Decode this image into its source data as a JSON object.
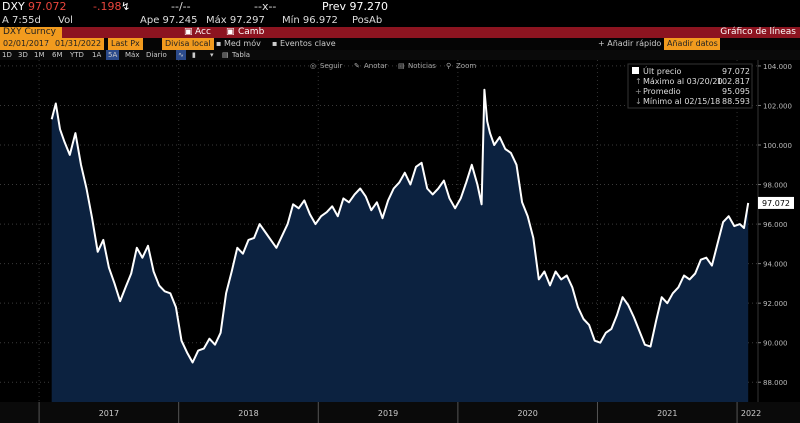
{
  "header": {
    "ticker": "DXY",
    "last": "97.072",
    "change": "-.198",
    "time": "A 7:55d",
    "vol_label": "Vol",
    "range_placeholder": "--/--",
    "range_placeholder2": "--x--",
    "ape": "Ape 97.245",
    "max": "Máx 97.297",
    "min": "Mín 96.972",
    "prev": "Prev 97.270",
    "posab": "PosAb"
  },
  "toolbar": {
    "security": "DXY Curncy",
    "acc": "Acc",
    "camb": "Camb",
    "title": "Gráfico de líneas"
  },
  "controls": {
    "date_from": "02/01/2017",
    "date_to": "01/31/2022",
    "field": "Last Px",
    "currency": "Divisa local",
    "med_mov": "Med móv",
    "eventos": "Eventos clave",
    "add_quick": "Añadir rápido",
    "add_data": "Añadir datos"
  },
  "periods": [
    "1D",
    "3D",
    "1M",
    "6M",
    "YTD",
    "1A",
    "5A",
    "Máx",
    "Diario"
  ],
  "table_label": "Tabla",
  "chart_tools": [
    "Seguir",
    "Anotar",
    "Noticias",
    "Zoom"
  ],
  "legend": {
    "rows": [
      {
        "label": "Últ precio",
        "value": "97.072"
      },
      {
        "label": "Máximo al 03/20/20",
        "value": "102.817"
      },
      {
        "label": "Promedio",
        "value": "95.095"
      },
      {
        "label": "Mínimo al 02/15/18",
        "value": "88.593"
      }
    ]
  },
  "colors": {
    "line": "#ffffff",
    "fill": "#0c2240",
    "accent": "#f29b1e",
    "bar": "#8c1420"
  },
  "chart_data": {
    "type": "area",
    "xlabel": "",
    "ylabel": "",
    "ylim": [
      87,
      104.3
    ],
    "yticks": [
      88,
      90,
      92,
      94,
      96,
      98,
      100,
      102,
      104
    ],
    "ytick_labels": [
      "88.000",
      "90.000",
      "92.000",
      "94.000",
      "96.000",
      "98.000",
      "100.000",
      "102.000",
      "104.000"
    ],
    "xticks": [
      "2017",
      "2018",
      "2019",
      "2020",
      "2021",
      "2022"
    ],
    "last_label": "97.072",
    "x": [
      2017.09,
      2017.12,
      2017.15,
      2017.18,
      2017.22,
      2017.26,
      2017.3,
      2017.34,
      2017.38,
      2017.42,
      2017.46,
      2017.5,
      2017.54,
      2017.58,
      2017.62,
      2017.66,
      2017.7,
      2017.74,
      2017.78,
      2017.82,
      2017.86,
      2017.9,
      2017.94,
      2017.98,
      2018.02,
      2018.06,
      2018.1,
      2018.14,
      2018.18,
      2018.22,
      2018.26,
      2018.3,
      2018.34,
      2018.38,
      2018.42,
      2018.46,
      2018.5,
      2018.54,
      2018.58,
      2018.62,
      2018.66,
      2018.7,
      2018.74,
      2018.78,
      2018.82,
      2018.86,
      2018.9,
      2018.94,
      2018.98,
      2019.02,
      2019.06,
      2019.1,
      2019.14,
      2019.18,
      2019.22,
      2019.26,
      2019.3,
      2019.34,
      2019.38,
      2019.42,
      2019.46,
      2019.5,
      2019.54,
      2019.58,
      2019.62,
      2019.66,
      2019.7,
      2019.74,
      2019.78,
      2019.82,
      2019.86,
      2019.9,
      2019.94,
      2019.98,
      2020.02,
      2020.06,
      2020.1,
      2020.14,
      2020.17,
      2020.19,
      2020.21,
      2020.23,
      2020.26,
      2020.3,
      2020.34,
      2020.38,
      2020.42,
      2020.46,
      2020.5,
      2020.54,
      2020.58,
      2020.62,
      2020.66,
      2020.7,
      2020.74,
      2020.78,
      2020.82,
      2020.86,
      2020.9,
      2020.94,
      2020.98,
      2021.02,
      2021.06,
      2021.1,
      2021.14,
      2021.18,
      2021.22,
      2021.26,
      2021.3,
      2021.34,
      2021.38,
      2021.42,
      2021.46,
      2021.5,
      2021.54,
      2021.58,
      2021.62,
      2021.66,
      2021.7,
      2021.74,
      2021.78,
      2021.82,
      2021.86,
      2021.9,
      2021.94,
      2021.98,
      2022.02,
      2022.05,
      2022.08
    ],
    "values": [
      101.3,
      102.1,
      100.8,
      100.2,
      99.5,
      100.6,
      99.0,
      97.8,
      96.3,
      94.6,
      95.2,
      93.8,
      93.0,
      92.1,
      92.8,
      93.5,
      94.8,
      94.3,
      94.9,
      93.6,
      92.9,
      92.6,
      92.5,
      91.8,
      90.1,
      89.5,
      89.0,
      89.6,
      89.7,
      90.2,
      89.9,
      90.5,
      92.5,
      93.6,
      94.8,
      94.5,
      95.2,
      95.3,
      96.0,
      95.6,
      95.2,
      94.8,
      95.4,
      96.0,
      97.0,
      96.8,
      97.2,
      96.5,
      96.0,
      96.4,
      96.6,
      96.9,
      96.4,
      97.3,
      97.1,
      97.5,
      97.8,
      97.4,
      96.7,
      97.1,
      96.3,
      97.2,
      97.8,
      98.1,
      98.6,
      98.0,
      98.9,
      99.1,
      97.8,
      97.5,
      97.8,
      98.2,
      97.3,
      96.8,
      97.3,
      98.1,
      99.0,
      98.0,
      97.0,
      102.8,
      101.2,
      100.6,
      100.0,
      100.4,
      99.8,
      99.6,
      99.0,
      97.1,
      96.4,
      95.3,
      93.2,
      93.6,
      92.9,
      93.6,
      93.2,
      93.4,
      92.8,
      91.8,
      91.2,
      90.9,
      90.1,
      90.0,
      90.5,
      90.7,
      91.4,
      92.3,
      91.9,
      91.3,
      90.6,
      89.9,
      89.8,
      91.1,
      92.3,
      92.0,
      92.5,
      92.8,
      93.4,
      93.2,
      93.5,
      94.2,
      94.3,
      93.9,
      95.0,
      96.1,
      96.4,
      95.9,
      96.0,
      95.8,
      97.07
    ]
  }
}
